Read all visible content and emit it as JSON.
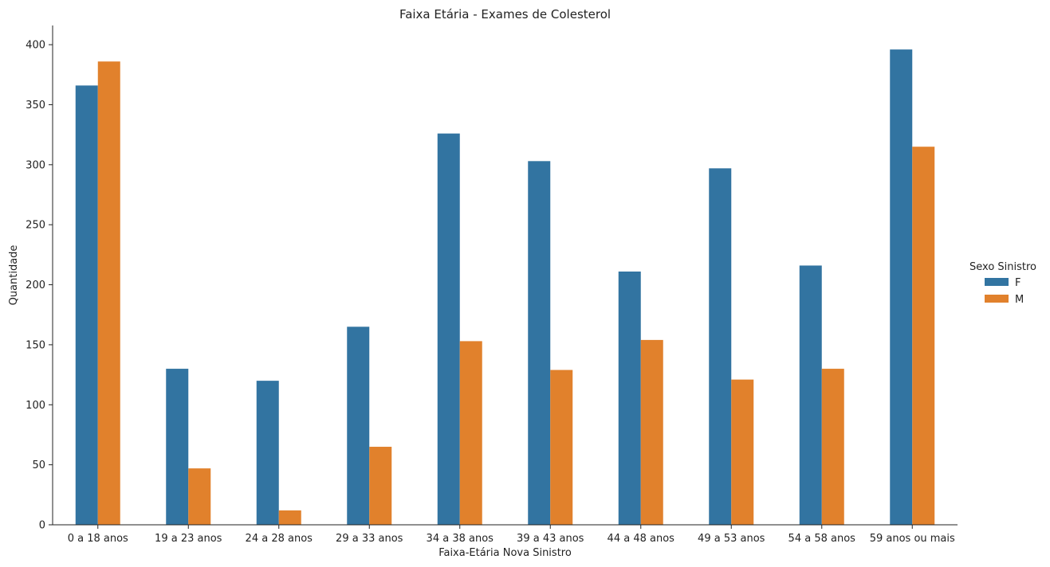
{
  "chart_data": {
    "type": "bar",
    "title": "Faixa Etária - Exames de Colesterol",
    "xlabel": "Faixa-Etária Nova Sinistro",
    "ylabel": "Quantidade",
    "categories": [
      "0 a 18 anos",
      "19 a 23 anos",
      "24 a 28 anos",
      "29 a 33 anos",
      "34 a 38 anos",
      "39 a 43 anos",
      "44 a 48 anos",
      "49 a 53 anos",
      "54 a 58 anos",
      "59 anos ou mais"
    ],
    "series": [
      {
        "name": "F",
        "color": "#3274a1",
        "values": [
          366,
          130,
          120,
          165,
          326,
          303,
          211,
          297,
          216,
          396
        ]
      },
      {
        "name": "M",
        "color": "#e1812c",
        "values": [
          386,
          47,
          12,
          65,
          153,
          129,
          154,
          121,
          130,
          315
        ]
      }
    ],
    "ylim": [
      0,
      416
    ],
    "yticks": [
      0,
      50,
      100,
      150,
      200,
      250,
      300,
      350,
      400
    ],
    "legend": {
      "title": "Sexo Sinistro",
      "placement": "right"
    },
    "grid": false
  }
}
